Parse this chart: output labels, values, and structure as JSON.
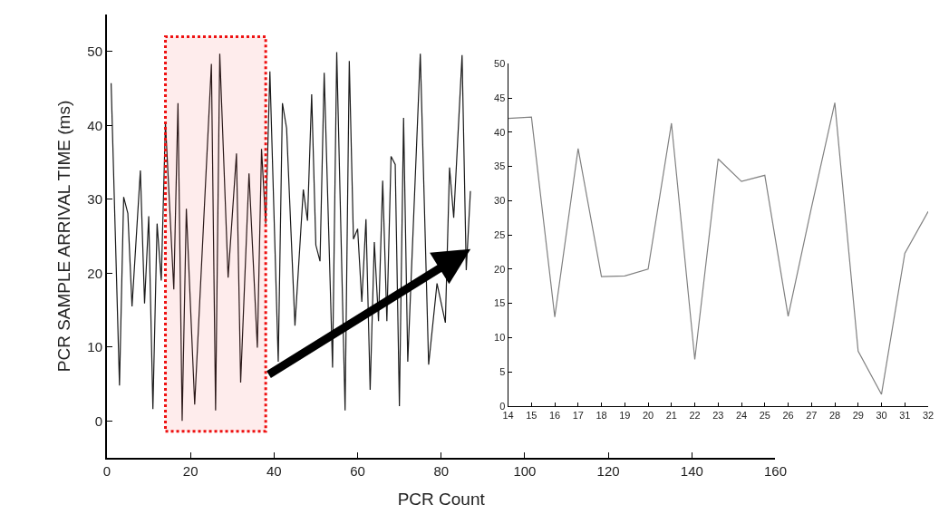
{
  "chart_data": [
    {
      "type": "line",
      "xlabel": "PCR Count",
      "ylabel": "PCR SAMPLE ARRIVAL TIME (ms)",
      "xlim": [
        0,
        160
      ],
      "ylim": [
        -5,
        55
      ],
      "xticks": [
        0,
        20,
        40,
        60,
        80,
        100,
        120,
        140,
        160
      ],
      "yticks": [
        0,
        10,
        20,
        30,
        40,
        50
      ],
      "marker": "none",
      "line_style": "solid",
      "series": [
        {
          "color": "#1a1a1a",
          "x": [
            1,
            3,
            4,
            5,
            6,
            8,
            9,
            10,
            11,
            12,
            13,
            14,
            16,
            17,
            18,
            19,
            21,
            25,
            26,
            27,
            29,
            31,
            32,
            34,
            36,
            37,
            38,
            39,
            41,
            42,
            43,
            45,
            47,
            48,
            49,
            50,
            51,
            52,
            54,
            55,
            57,
            58,
            59,
            60,
            61,
            62,
            63,
            64,
            65,
            66,
            67,
            68,
            69,
            70,
            71,
            72,
            75,
            77,
            79,
            81,
            82,
            83,
            85,
            86,
            87
          ],
          "values": [
            45.7,
            4.8,
            30.3,
            28.1,
            15.5,
            33.9,
            15.9,
            27.7,
            1.6,
            26.7,
            19.0,
            40.4,
            17.8,
            43.0,
            0.0,
            28.7,
            2.2,
            48.3,
            1.4,
            49.7,
            19.4,
            36.2,
            5.2,
            33.5,
            9.9,
            36.8,
            26.7,
            47.3,
            8.0,
            43.0,
            39.6,
            12.9,
            31.3,
            27.1,
            44.2,
            23.8,
            21.6,
            47.1,
            7.2,
            49.9,
            1.4,
            48.7,
            24.6,
            26.0,
            16.1,
            27.3,
            4.2,
            24.2,
            13.5,
            32.5,
            13.5,
            35.8,
            34.7,
            2.0,
            41.0,
            8.0,
            49.7,
            7.6,
            18.6,
            13.3,
            34.3,
            27.5,
            49.5,
            20.4,
            31.1
          ]
        }
      ],
      "bands": [
        {
          "axis": "x",
          "from": 14,
          "to": 38,
          "color": "#ee1111"
        }
      ]
    },
    {
      "type": "line",
      "xlim": [
        14,
        32
      ],
      "ylim": [
        0,
        50
      ],
      "xticks": [
        14,
        15,
        16,
        17,
        18,
        19,
        20,
        21,
        22,
        23,
        24,
        25,
        26,
        27,
        28,
        29,
        30,
        31,
        32
      ],
      "yticks": [
        0,
        5,
        10,
        15,
        20,
        25,
        30,
        35,
        40,
        45,
        50
      ],
      "marker": "none",
      "line_style": "solid",
      "series": [
        {
          "color": "#808080",
          "x": [
            14,
            15,
            16,
            17,
            18,
            19,
            20,
            21,
            22,
            23,
            24,
            25,
            26,
            27,
            28,
            29,
            30,
            31,
            32
          ],
          "values": [
            42.0,
            42.2,
            13.0,
            37.6,
            18.9,
            19.0,
            20.0,
            41.3,
            6.8,
            36.1,
            32.8,
            33.7,
            13.1,
            29.0,
            44.3,
            8.0,
            1.7,
            22.3,
            28.4
          ]
        }
      ]
    }
  ]
}
